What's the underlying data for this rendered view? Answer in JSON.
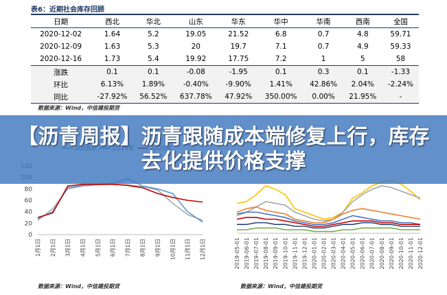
{
  "table": {
    "title": "表6：近期社会库存回顾",
    "header": [
      "日期",
      "西北",
      "华北",
      "山东",
      "华东",
      "华中",
      "华南",
      "西南",
      "全国"
    ],
    "rows": [
      [
        "2020-12-02",
        "1.64",
        "5.2",
        "19.05",
        "21.52",
        "6.8",
        "0.7",
        "4.8",
        "59.71"
      ],
      [
        "2020-12-09",
        "1.63",
        "5.3",
        "20",
        "19.7",
        "7.1",
        "0.7",
        "4.9",
        "59.33"
      ],
      [
        "2020-12-16",
        "1.73",
        "5.4",
        "19.92",
        "17.75",
        "7.2",
        "1",
        "5",
        "58"
      ],
      [
        "涨跌",
        "0.1",
        "0.1",
        "-0.08",
        "-1.95",
        "0.1",
        "0.3",
        "0.1",
        "-1.33"
      ],
      [
        "环比",
        "6.13%",
        "1.89%",
        "-0.40%",
        "-9.90%",
        "1.41%",
        "42.86%",
        "2.04%",
        "-2.24%"
      ],
      [
        "同比",
        "-27.92%",
        "56.52%",
        "637.78%",
        "47.92%",
        "350.00%",
        "0.00%",
        "21.95%",
        "-"
      ]
    ],
    "source": "数据来源：Wind，中信建投期货"
  },
  "banner": {
    "title": "【沥青周报】沥青跟随成本端修复上行，库存去化提供价格支撑"
  },
  "charts": [
    {
      "type": "line",
      "categories": [
        "1月1日",
        "2月1日",
        "3月1日",
        "4月1日",
        "5月1日",
        "6月1日",
        "7月1日",
        "8月1日",
        "9月1日",
        "10月1日",
        "11月1日",
        "12月1日"
      ],
      "series": [
        {
          "name": "2018年",
          "color": "#a5a5a5",
          "values": [
            25,
            45,
            80,
            85,
            87,
            88,
            87,
            84,
            78,
            55,
            35,
            25
          ]
        },
        {
          "name": "2019年",
          "color": "#5b9bd5",
          "values": [
            28,
            40,
            82,
            86,
            88,
            90,
            98,
            85,
            80,
            72,
            40,
            22
          ]
        },
        {
          "name": "2020年",
          "color": "#c00000",
          "values": [
            30,
            38,
            85,
            88,
            88,
            88,
            86,
            82,
            72,
            65,
            60,
            57
          ]
        }
      ],
      "ylim": [
        0,
        120
      ],
      "yticks": [
        0,
        20,
        40,
        60,
        80,
        100,
        120
      ],
      "source": "数据来源：Wind，中信建投期货"
    },
    {
      "type": "line",
      "categories": [
        "2019-05-01",
        "2019-06-01",
        "2019-07-01",
        "2019-08-01",
        "2019-09-01",
        "2019-10-01",
        "2019-11-01",
        "2019-12-01",
        "2020-01-01",
        "2020-02-01",
        "2020-03-01",
        "2020-04-01",
        "2020-05-01",
        "2020-06-01",
        "2020-07-01",
        "2020-08-01",
        "2020-09-01",
        "2020-10-01",
        "2020-11-01",
        "2020-12-01"
      ],
      "series": [
        {
          "color": "#ffc000",
          "values": [
            17,
            18,
            22,
            27,
            25,
            22,
            14,
            12,
            10,
            8,
            9,
            12,
            20,
            23,
            27,
            29,
            30,
            28,
            24,
            19
          ]
        },
        {
          "color": "#a5a5a5",
          "values": [
            10,
            12,
            15,
            18,
            17,
            16,
            12,
            10,
            8,
            7,
            8,
            12,
            18,
            22,
            25,
            27,
            26,
            24,
            22,
            20
          ]
        },
        {
          "color": "#ed7d31",
          "values": [
            12,
            14,
            15,
            13,
            12,
            11,
            8,
            7,
            6,
            6,
            8,
            11,
            13,
            14,
            13,
            12,
            11,
            10,
            9,
            8
          ]
        },
        {
          "color": "#4472c4",
          "values": [
            11,
            12,
            12,
            11,
            10,
            9,
            7,
            6,
            5,
            5,
            6,
            8,
            10,
            9,
            8,
            7,
            7,
            6,
            6,
            5
          ]
        },
        {
          "color": "#c00000",
          "values": [
            8,
            9,
            9,
            8,
            8,
            7,
            6,
            5,
            4,
            4,
            5,
            6,
            7,
            7,
            7,
            6,
            6,
            5,
            5,
            5
          ]
        },
        {
          "color": "#264478",
          "values": [
            5,
            5,
            6,
            6,
            5,
            5,
            4,
            4,
            3,
            3,
            4,
            5,
            5,
            6,
            6,
            5,
            5,
            4,
            4,
            4
          ]
        },
        {
          "color": "#70ad47",
          "values": [
            2,
            2,
            3,
            3,
            3,
            2,
            2,
            2,
            1,
            1,
            1,
            2,
            2,
            3,
            3,
            3,
            3,
            2,
            2,
            2
          ]
        }
      ],
      "ylim": [
        0,
        32
      ],
      "source": "数据来源：Wind，中信建投期货"
    }
  ]
}
